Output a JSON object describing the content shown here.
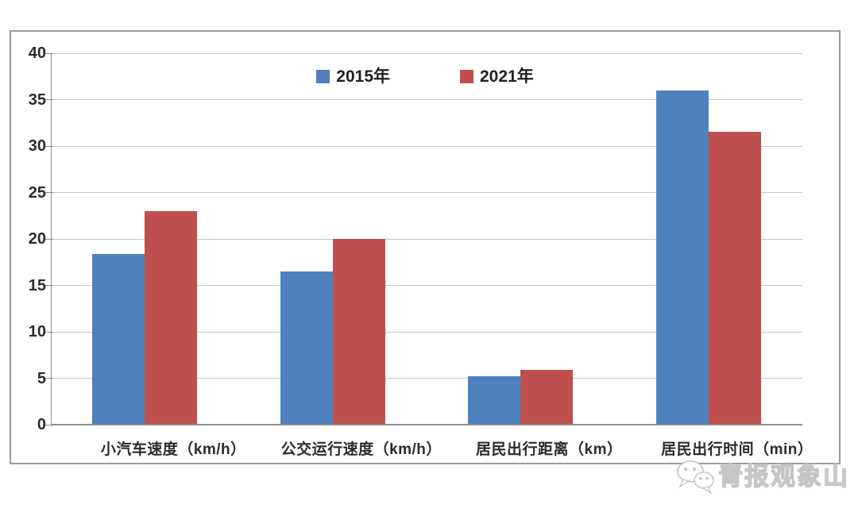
{
  "chart_data": {
    "type": "bar",
    "title": "",
    "categories": [
      "小汽车速度（km/h）",
      "公交运行速度（km/h）",
      "居民出行距离（km）",
      "居民出行时间（min）"
    ],
    "series": [
      {
        "name": "2015年",
        "color": "#4F81BD",
        "values": [
          18.4,
          16.5,
          5.2,
          36
        ]
      },
      {
        "name": "2021年",
        "color": "#C0504D",
        "values": [
          23,
          20,
          5.9,
          31.5
        ]
      }
    ],
    "xlabel": "",
    "ylabel": "",
    "ylim": [
      0,
      40
    ],
    "yticks": [
      0,
      5,
      10,
      15,
      20,
      25,
      30,
      35,
      40
    ],
    "grid": true,
    "legend_position": "top-center"
  },
  "watermark": {
    "text": "青报观象山",
    "icon": "wechat-chat-bubbles-icon"
  }
}
